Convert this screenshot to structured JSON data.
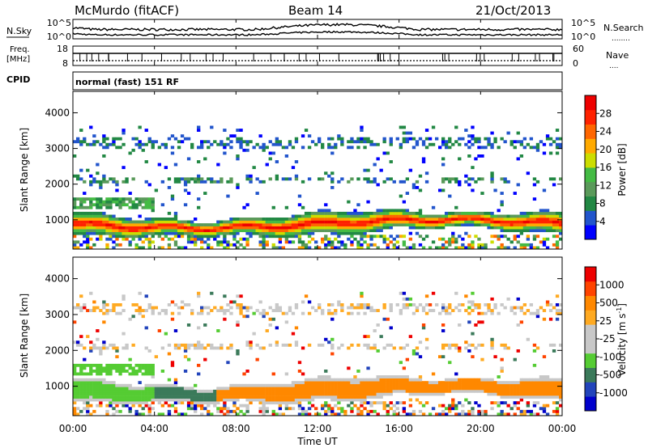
{
  "header": {
    "station": "McMurdo (fitACF)",
    "beam": "Beam 14",
    "date": "21/Oct/2013"
  },
  "side_labels": {
    "nsky": "N.Sky",
    "nsearch": "N.Search",
    "nsearch_dots": "........",
    "freq_line1": "Freq.",
    "freq_line2": "[MHz]",
    "nave": "Nave",
    "nave_dots": "....",
    "cpid": "CPID",
    "cpid_value": "normal (fast) 151 RF"
  },
  "colors": {
    "power": [
      "#0000ff",
      "#2255cc",
      "#228844",
      "#5a9a5a",
      "#44bb44",
      "#ccdd00",
      "#ffaa00",
      "#ff6600",
      "#ff2200",
      "#ee0000"
    ],
    "velocity": [
      "#0000cc",
      "#2244bb",
      "#3b7a5a",
      "#55cc33",
      "#c8c8c8",
      "#c8c8c8",
      "#ffaa22",
      "#ff8800",
      "#ff4400",
      "#ee0000"
    ]
  },
  "chart_data": [
    {
      "type": "line",
      "panel": "noise",
      "yticks_left": [
        "10^5",
        "10^0"
      ],
      "yticks_right": [
        "10^5",
        "10^0"
      ],
      "scale": "log",
      "ylim": [
        0,
        5
      ]
    },
    {
      "type": "line",
      "panel": "freq-nave",
      "yticks_left": [
        "18",
        "8"
      ],
      "yticks_right": [
        "60",
        "0"
      ],
      "ylim_left": [
        8,
        18
      ],
      "ylim_right": [
        0,
        60
      ]
    },
    {
      "type": "heatmap",
      "panel": "power",
      "ylabel": "Slant Range [km]",
      "yticks": [
        "1000",
        "2000",
        "3000",
        "4000"
      ],
      "ylim": [
        180,
        4600
      ],
      "colorbar_title": "Power [dB]",
      "colorbar_ticks": [
        "4",
        "8",
        "12",
        "16",
        "20",
        "24",
        "28"
      ],
      "colorbar_range": [
        0,
        30
      ],
      "grid": false
    },
    {
      "type": "heatmap",
      "panel": "velocity",
      "ylabel": "Slant Range [km]",
      "yticks": [
        "1000",
        "2000",
        "3000",
        "4000"
      ],
      "ylim": [
        180,
        4600
      ],
      "colorbar_title": "Velocity [m s",
      "colorbar_title_sup": "-1",
      "colorbar_title_end": "]",
      "colorbar_ticks": [
        "1000",
        "500",
        "25",
        "-25",
        "-100",
        "-500",
        "-1000"
      ],
      "grid": false
    }
  ],
  "xaxis": {
    "label": "Time UT",
    "ticks": [
      "00:00",
      "04:00",
      "08:00",
      "12:00",
      "16:00",
      "20:00",
      "00:00"
    ],
    "xlim_hours": [
      0,
      24
    ]
  }
}
